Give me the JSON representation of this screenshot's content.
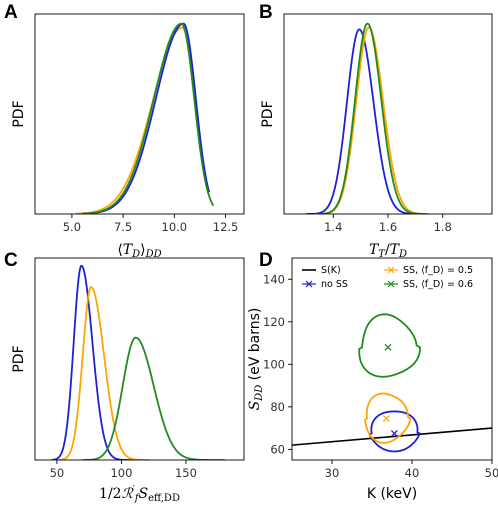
{
  "colors": {
    "blue": "#1f1fd6",
    "orange": "#ffa500",
    "green": "#1e8c1e",
    "black": "#000000"
  },
  "chart_data": [
    {
      "panel": "A",
      "type": "line",
      "xlabel": "⟨T_D⟩_DD",
      "ylabel": "PDF",
      "xlim": [
        3.2,
        13.4
      ],
      "xticks": [
        "5.0",
        "7.5",
        "10.0",
        "12.5"
      ],
      "xtick_values": [
        5.0,
        7.5,
        10.0,
        12.5
      ],
      "curves": [
        {
          "color": "orange",
          "peak_x": 10.4,
          "peak_y": 0.97,
          "left_sigma": 1.45,
          "right_sigma": 0.6,
          "start": 5.2,
          "end": 11.6
        },
        {
          "color": "blue",
          "peak_x": 10.45,
          "peak_y": 0.99,
          "left_sigma": 1.35,
          "right_sigma": 0.6,
          "start": 5.5,
          "end": 11.7
        },
        {
          "color": "green",
          "peak_x": 10.35,
          "peak_y": 0.99,
          "left_sigma": 1.35,
          "right_sigma": 0.62,
          "start": 5.5,
          "end": 11.9
        }
      ]
    },
    {
      "panel": "B",
      "type": "line",
      "xlabel": "T_T / T_D",
      "ylabel": "PDF",
      "xlim": [
        1.22,
        1.98
      ],
      "xticks": [
        "1.4",
        "1.6",
        "1.8"
      ],
      "xtick_values": [
        1.4,
        1.6,
        1.8
      ],
      "curves": [
        {
          "color": "blue",
          "peak_x": 1.495,
          "peak_y": 0.96,
          "left_sigma": 0.045,
          "right_sigma": 0.052,
          "start": 1.3,
          "end": 1.72
        },
        {
          "color": "orange",
          "peak_x": 1.53,
          "peak_y": 0.97,
          "left_sigma": 0.046,
          "right_sigma": 0.052,
          "start": 1.33,
          "end": 1.75
        },
        {
          "color": "green",
          "peak_x": 1.525,
          "peak_y": 0.99,
          "left_sigma": 0.045,
          "right_sigma": 0.05,
          "start": 1.33,
          "end": 1.74
        }
      ]
    },
    {
      "panel": "C",
      "type": "line",
      "xlabel": "1/2 R'_f S_eff,DD",
      "ylabel": "PDF",
      "xlim": [
        33,
        195
      ],
      "xticks": [
        "50",
        "100",
        "150"
      ],
      "xtick_values": [
        50,
        100,
        150
      ],
      "curves": [
        {
          "color": "blue",
          "peak_x": 69,
          "peak_y": 1.0,
          "left_sigma": 6,
          "right_sigma": 8.5,
          "start": 46,
          "end": 112
        },
        {
          "color": "orange",
          "peak_x": 76.5,
          "peak_y": 0.89,
          "left_sigma": 6.5,
          "right_sigma": 10,
          "start": 52,
          "end": 122
        },
        {
          "color": "green",
          "peak_x": 111,
          "peak_y": 0.63,
          "left_sigma": 10,
          "right_sigma": 14,
          "start": 70,
          "end": 180
        }
      ]
    },
    {
      "panel": "D",
      "type": "scatter",
      "xlabel": "K (keV)",
      "ylabel": "S_DD (eV barns)",
      "xlim": [
        25,
        50
      ],
      "ylim": [
        55,
        150
      ],
      "xticks": [
        "30",
        "40",
        "50"
      ],
      "xtick_values": [
        30,
        40,
        50
      ],
      "yticks": [
        "60",
        "80",
        "100",
        "120",
        "140"
      ],
      "ytick_values": [
        60,
        80,
        100,
        120,
        140
      ],
      "line": {
        "label": "S(K)",
        "color": "black",
        "points": [
          [
            25,
            62
          ],
          [
            50,
            70
          ]
        ]
      },
      "series": [
        {
          "name": "no SS",
          "color": "blue",
          "center": [
            37.8,
            67.5
          ],
          "rx": 3.0,
          "ry_top": 11,
          "ry_bottom": 8
        },
        {
          "name": "SS, ⟨f_D⟩ = 0.5",
          "color": "orange",
          "center": [
            36.8,
            74.5
          ],
          "rx": 2.7,
          "ry_top": 12,
          "ry_bottom": 11
        },
        {
          "name": "SS, ⟨f_D⟩ = 0.6",
          "color": "green",
          "center": [
            37.0,
            108
          ],
          "rx": 3.6,
          "ry_top": 15,
          "ry_bottom": 14
        }
      ],
      "legend_position": "top",
      "legend": [
        {
          "label": "S(K)",
          "color": "black",
          "marker": "line"
        },
        {
          "label": "SS, ⟨f_D⟩ = 0.5",
          "color": "orange",
          "marker": "x"
        },
        {
          "label": "no SS",
          "color": "blue",
          "marker": "x"
        },
        {
          "label": "SS, ⟨f_D⟩ = 0.6",
          "color": "green",
          "marker": "x"
        }
      ]
    }
  ]
}
